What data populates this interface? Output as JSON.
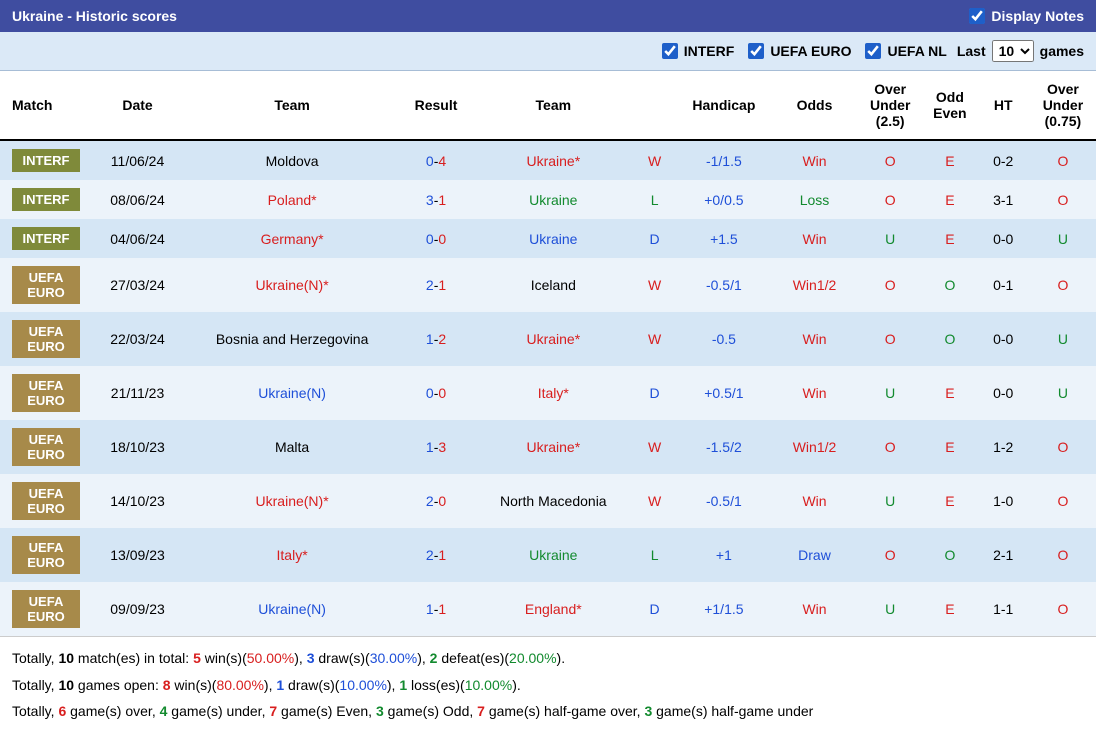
{
  "title": "Ukraine - Historic scores",
  "display_notes_label": "Display Notes",
  "display_notes_checked": true,
  "filters": [
    {
      "label": "INTERF",
      "checked": true
    },
    {
      "label": "UEFA EURO",
      "checked": true
    },
    {
      "label": "UEFA NL",
      "checked": true
    }
  ],
  "last_label_pre": "Last",
  "last_label_post": "games",
  "last_value": "10",
  "headers": [
    "Match",
    "Date",
    "Team",
    "Result",
    "Team",
    "",
    "Handicap",
    "Odds",
    "Over Under (2.5)",
    "Odd Even",
    "HT",
    "Over Under (0.75)"
  ],
  "rows": [
    {
      "badge": "INTERF",
      "badge_bg": "#7f8a3a",
      "bg": "row-norm",
      "date": "11/06/24",
      "home": "Moldova",
      "home_color": "black",
      "home_star": false,
      "score_h": "0",
      "score_a": "4",
      "away": "Ukraine",
      "away_color": "red",
      "away_star": true,
      "wld": "W",
      "wld_color": "red",
      "handicap": "-1/1.5",
      "handicap_color": "blue",
      "odds": "Win",
      "odds_color": "red",
      "ou": "O",
      "ou_color": "red",
      "oe": "E",
      "oe_color": "red",
      "ht": "0-2",
      "ou2": "O",
      "ou2_color": "red"
    },
    {
      "badge": "INTERF",
      "badge_bg": "#7f8a3a",
      "bg": "row-alt",
      "date": "08/06/24",
      "home": "Poland",
      "home_color": "red",
      "home_star": true,
      "score_h": "3",
      "score_a": "1",
      "away": "Ukraine",
      "away_color": "green",
      "away_star": false,
      "wld": "L",
      "wld_color": "green",
      "handicap": "+0/0.5",
      "handicap_color": "blue",
      "odds": "Loss",
      "odds_color": "green",
      "ou": "O",
      "ou_color": "red",
      "oe": "E",
      "oe_color": "red",
      "ht": "3-1",
      "ou2": "O",
      "ou2_color": "red"
    },
    {
      "badge": "INTERF",
      "badge_bg": "#7f8a3a",
      "bg": "row-norm",
      "date": "04/06/24",
      "home": "Germany",
      "home_color": "red",
      "home_star": true,
      "score_h": "0",
      "score_a": "0",
      "away": "Ukraine",
      "away_color": "blue",
      "away_star": false,
      "wld": "D",
      "wld_color": "blue",
      "handicap": "+1.5",
      "handicap_color": "blue",
      "odds": "Win",
      "odds_color": "red",
      "ou": "U",
      "ou_color": "green",
      "oe": "E",
      "oe_color": "red",
      "ht": "0-0",
      "ou2": "U",
      "ou2_color": "green"
    },
    {
      "badge": "UEFA EURO",
      "badge_bg": "#a78a4a",
      "bg": "row-alt",
      "date": "27/03/24",
      "home": "Ukraine(N)",
      "home_color": "red",
      "home_star": true,
      "score_h": "2",
      "score_a": "1",
      "away": "Iceland",
      "away_color": "black",
      "away_star": false,
      "wld": "W",
      "wld_color": "red",
      "handicap": "-0.5/1",
      "handicap_color": "blue",
      "odds": "Win1/2",
      "odds_color": "red",
      "ou": "O",
      "ou_color": "red",
      "oe": "O",
      "oe_color": "green",
      "ht": "0-1",
      "ou2": "O",
      "ou2_color": "red"
    },
    {
      "badge": "UEFA EURO",
      "badge_bg": "#a78a4a",
      "bg": "row-norm",
      "date": "22/03/24",
      "home": "Bosnia and Herzegovina",
      "home_color": "black",
      "home_star": false,
      "score_h": "1",
      "score_a": "2",
      "away": "Ukraine",
      "away_color": "red",
      "away_star": true,
      "wld": "W",
      "wld_color": "red",
      "handicap": "-0.5",
      "handicap_color": "blue",
      "odds": "Win",
      "odds_color": "red",
      "ou": "O",
      "ou_color": "red",
      "oe": "O",
      "oe_color": "green",
      "ht": "0-0",
      "ou2": "U",
      "ou2_color": "green"
    },
    {
      "badge": "UEFA EURO",
      "badge_bg": "#a78a4a",
      "bg": "row-alt",
      "date": "21/11/23",
      "home": "Ukraine(N)",
      "home_color": "blue",
      "home_star": false,
      "score_h": "0",
      "score_a": "0",
      "away": "Italy",
      "away_color": "red",
      "away_star": true,
      "wld": "D",
      "wld_color": "blue",
      "handicap": "+0.5/1",
      "handicap_color": "blue",
      "odds": "Win",
      "odds_color": "red",
      "ou": "U",
      "ou_color": "green",
      "oe": "E",
      "oe_color": "red",
      "ht": "0-0",
      "ou2": "U",
      "ou2_color": "green"
    },
    {
      "badge": "UEFA EURO",
      "badge_bg": "#a78a4a",
      "bg": "row-norm",
      "date": "18/10/23",
      "home": "Malta",
      "home_color": "black",
      "home_star": false,
      "score_h": "1",
      "score_a": "3",
      "away": "Ukraine",
      "away_color": "red",
      "away_star": true,
      "wld": "W",
      "wld_color": "red",
      "handicap": "-1.5/2",
      "handicap_color": "blue",
      "odds": "Win1/2",
      "odds_color": "red",
      "ou": "O",
      "ou_color": "red",
      "oe": "E",
      "oe_color": "red",
      "ht": "1-2",
      "ou2": "O",
      "ou2_color": "red"
    },
    {
      "badge": "UEFA EURO",
      "badge_bg": "#a78a4a",
      "bg": "row-alt",
      "date": "14/10/23",
      "home": "Ukraine(N)",
      "home_color": "red",
      "home_star": true,
      "score_h": "2",
      "score_a": "0",
      "away": "North Macedonia",
      "away_color": "black",
      "away_star": false,
      "wld": "W",
      "wld_color": "red",
      "handicap": "-0.5/1",
      "handicap_color": "blue",
      "odds": "Win",
      "odds_color": "red",
      "ou": "U",
      "ou_color": "green",
      "oe": "E",
      "oe_color": "red",
      "ht": "1-0",
      "ou2": "O",
      "ou2_color": "red"
    },
    {
      "badge": "UEFA EURO",
      "badge_bg": "#a78a4a",
      "bg": "row-norm",
      "date": "13/09/23",
      "home": "Italy",
      "home_color": "red",
      "home_star": true,
      "score_h": "2",
      "score_a": "1",
      "away": "Ukraine",
      "away_color": "green",
      "away_star": false,
      "wld": "L",
      "wld_color": "green",
      "handicap": "+1",
      "handicap_color": "blue",
      "odds": "Draw",
      "odds_color": "blue",
      "ou": "O",
      "ou_color": "red",
      "oe": "O",
      "oe_color": "green",
      "ht": "2-1",
      "ou2": "O",
      "ou2_color": "red"
    },
    {
      "badge": "UEFA EURO",
      "badge_bg": "#a78a4a",
      "bg": "row-alt",
      "date": "09/09/23",
      "home": "Ukraine(N)",
      "home_color": "blue",
      "home_star": false,
      "score_h": "1",
      "score_a": "1",
      "away": "England",
      "away_color": "red",
      "away_star": true,
      "wld": "D",
      "wld_color": "blue",
      "handicap": "+1/1.5",
      "handicap_color": "blue",
      "odds": "Win",
      "odds_color": "red",
      "ou": "U",
      "ou_color": "green",
      "oe": "E",
      "oe_color": "red",
      "ht": "1-1",
      "ou2": "O",
      "ou2_color": "red"
    }
  ],
  "summary": {
    "line1_parts": [
      {
        "t": "Totally, ",
        "c": "black"
      },
      {
        "t": "10",
        "c": "black",
        "b": true
      },
      {
        "t": " match(es) in total: ",
        "c": "black"
      },
      {
        "t": "5",
        "c": "red",
        "b": true
      },
      {
        "t": " win(s)(",
        "c": "black"
      },
      {
        "t": "50.00%",
        "c": "red"
      },
      {
        "t": "), ",
        "c": "black"
      },
      {
        "t": "3",
        "c": "blue",
        "b": true
      },
      {
        "t": " draw(s)(",
        "c": "black"
      },
      {
        "t": "30.00%",
        "c": "blue"
      },
      {
        "t": "), ",
        "c": "black"
      },
      {
        "t": "2",
        "c": "green",
        "b": true
      },
      {
        "t": " defeat(es)(",
        "c": "black"
      },
      {
        "t": "20.00%",
        "c": "green"
      },
      {
        "t": ").",
        "c": "black"
      }
    ],
    "line2_parts": [
      {
        "t": "Totally, ",
        "c": "black"
      },
      {
        "t": "10",
        "c": "black",
        "b": true
      },
      {
        "t": " games open: ",
        "c": "black"
      },
      {
        "t": "8",
        "c": "red",
        "b": true
      },
      {
        "t": " win(s)(",
        "c": "black"
      },
      {
        "t": "80.00%",
        "c": "red"
      },
      {
        "t": "), ",
        "c": "black"
      },
      {
        "t": "1",
        "c": "blue",
        "b": true
      },
      {
        "t": " draw(s)(",
        "c": "black"
      },
      {
        "t": "10.00%",
        "c": "blue"
      },
      {
        "t": "), ",
        "c": "black"
      },
      {
        "t": "1",
        "c": "green",
        "b": true
      },
      {
        "t": " loss(es)(",
        "c": "black"
      },
      {
        "t": "10.00%",
        "c": "green"
      },
      {
        "t": ").",
        "c": "black"
      }
    ],
    "line3_parts": [
      {
        "t": "Totally, ",
        "c": "black"
      },
      {
        "t": "6",
        "c": "red",
        "b": true
      },
      {
        "t": " game(s) over, ",
        "c": "black"
      },
      {
        "t": "4",
        "c": "green",
        "b": true
      },
      {
        "t": " game(s) under, ",
        "c": "black"
      },
      {
        "t": "7",
        "c": "red",
        "b": true
      },
      {
        "t": " game(s) Even, ",
        "c": "black"
      },
      {
        "t": "3",
        "c": "green",
        "b": true
      },
      {
        "t": " game(s) Odd, ",
        "c": "black"
      },
      {
        "t": "7",
        "c": "red",
        "b": true
      },
      {
        "t": " game(s) half-game over, ",
        "c": "black"
      },
      {
        "t": "3",
        "c": "green",
        "b": true
      },
      {
        "t": " game(s) half-game under",
        "c": "black"
      }
    ]
  }
}
